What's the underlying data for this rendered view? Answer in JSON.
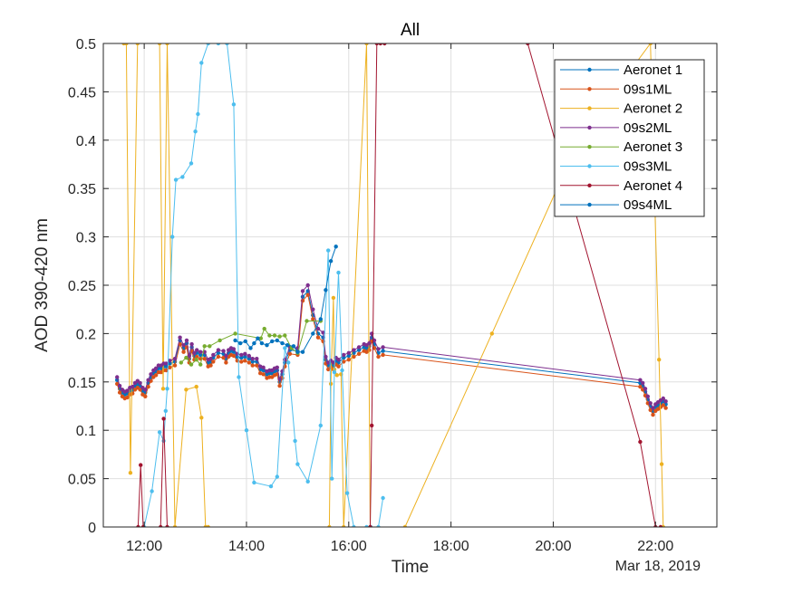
{
  "chart_data": {
    "type": "line",
    "title": "All",
    "xlabel": "Time",
    "ylabel": "AOD 390-420 nm",
    "date_label": "Mar 18, 2019",
    "x_unit": "hours",
    "xlim": [
      11.2,
      23.2
    ],
    "ylim": [
      0,
      0.5
    ],
    "x_ticks": [
      12,
      14,
      16,
      18,
      20,
      22
    ],
    "x_tick_labels": [
      "12:00",
      "14:00",
      "16:00",
      "18:00",
      "20:00",
      "22:00"
    ],
    "y_ticks": [
      0,
      0.05,
      0.1,
      0.15,
      0.2,
      0.25,
      0.3,
      0.35,
      0.4,
      0.45,
      0.5
    ],
    "y_tick_labels": [
      "0",
      "0.05",
      "0.1",
      "0.15",
      "0.2",
      "0.25",
      "0.3",
      "0.35",
      "0.4",
      "0.45",
      "0.5"
    ],
    "grid": true,
    "legend_position": "top-right",
    "series": [
      {
        "name": "Aeronet 1",
        "color": "#0072BD",
        "x": [
          11.47,
          11.52,
          11.57,
          11.62,
          11.67,
          11.72,
          11.77,
          11.82,
          11.87,
          11.92,
          11.97,
          12.02,
          12.08,
          12.13,
          12.18,
          12.23,
          12.28,
          12.33,
          12.38,
          12.43,
          12.5,
          12.6,
          12.7,
          12.77,
          12.83,
          12.88,
          12.93,
          12.98,
          13.03,
          13.1,
          13.18,
          13.25,
          13.3,
          13.35,
          13.45,
          13.55,
          13.6,
          13.65,
          13.7,
          13.75,
          13.82,
          13.9,
          13.97,
          14.05,
          14.12,
          14.2,
          14.27,
          14.33,
          14.4,
          14.45,
          14.5,
          14.55,
          14.6,
          14.65,
          14.7,
          14.75,
          14.85,
          15.0,
          15.1,
          15.2,
          15.3,
          15.4,
          15.5,
          15.55,
          15.6,
          15.65,
          15.7,
          15.75,
          15.8,
          15.9,
          16.0,
          16.1,
          16.2,
          16.3,
          16.35,
          16.4,
          16.45,
          16.5,
          16.58,
          16.67,
          21.7,
          21.75,
          21.8,
          21.85,
          21.9,
          21.95,
          22.0,
          22.05,
          22.1,
          22.15,
          22.2
        ],
        "y": [
          0.152,
          0.143,
          0.139,
          0.137,
          0.138,
          0.141,
          0.142,
          0.146,
          0.148,
          0.146,
          0.141,
          0.139,
          0.149,
          0.155,
          0.159,
          0.161,
          0.164,
          0.164,
          0.166,
          0.166,
          0.169,
          0.171,
          0.193,
          0.185,
          0.19,
          0.174,
          0.186,
          0.177,
          0.18,
          0.178,
          0.178,
          0.17,
          0.171,
          0.175,
          0.18,
          0.179,
          0.174,
          0.18,
          0.182,
          0.181,
          0.176,
          0.175,
          0.176,
          0.174,
          0.171,
          0.171,
          0.163,
          0.162,
          0.158,
          0.159,
          0.159,
          0.161,
          0.162,
          0.15,
          0.158,
          0.17,
          0.183,
          0.182,
          0.238,
          0.244,
          0.219,
          0.2,
          0.196,
          0.173,
          0.167,
          0.169,
          0.167,
          0.172,
          0.17,
          0.175,
          0.177,
          0.18,
          0.183,
          0.186,
          0.185,
          0.187,
          0.196,
          0.189,
          0.18,
          0.182,
          0.149,
          0.146,
          0.14,
          0.132,
          0.125,
          0.12,
          0.124,
          0.126,
          0.128,
          0.13,
          0.127
        ],
        "point_size": 2.2
      },
      {
        "name": "09s1ML",
        "color": "#D95319",
        "x": [
          11.47,
          11.52,
          11.57,
          11.62,
          11.67,
          11.72,
          11.77,
          11.82,
          11.87,
          11.92,
          11.97,
          12.02,
          12.08,
          12.13,
          12.18,
          12.23,
          12.28,
          12.33,
          12.38,
          12.43,
          12.5,
          12.6,
          12.7,
          12.77,
          12.83,
          12.88,
          12.93,
          12.98,
          13.03,
          13.1,
          13.18,
          13.25,
          13.3,
          13.35,
          13.45,
          13.55,
          13.6,
          13.65,
          13.7,
          13.75,
          13.82,
          13.9,
          13.97,
          14.05,
          14.12,
          14.2,
          14.27,
          14.33,
          14.4,
          14.45,
          14.5,
          14.55,
          14.6,
          14.65,
          14.7,
          14.75,
          14.85,
          15.0,
          15.1,
          15.2,
          15.3,
          15.4,
          15.5,
          15.55,
          15.6,
          15.65,
          15.7,
          15.75,
          15.8,
          15.9,
          16.0,
          16.1,
          16.2,
          16.3,
          16.35,
          16.4,
          16.45,
          16.5,
          16.58,
          16.67,
          21.7,
          21.75,
          21.8,
          21.85,
          21.9,
          21.95,
          22.0,
          22.05,
          22.1,
          22.15,
          22.2
        ],
        "y": [
          0.148,
          0.139,
          0.135,
          0.133,
          0.134,
          0.137,
          0.138,
          0.142,
          0.144,
          0.142,
          0.137,
          0.135,
          0.145,
          0.151,
          0.155,
          0.157,
          0.16,
          0.16,
          0.162,
          0.162,
          0.165,
          0.167,
          0.189,
          0.181,
          0.186,
          0.17,
          0.182,
          0.173,
          0.176,
          0.174,
          0.174,
          0.166,
          0.167,
          0.171,
          0.176,
          0.175,
          0.17,
          0.176,
          0.178,
          0.177,
          0.172,
          0.171,
          0.172,
          0.17,
          0.167,
          0.167,
          0.159,
          0.158,
          0.154,
          0.155,
          0.155,
          0.157,
          0.158,
          0.146,
          0.154,
          0.166,
          0.179,
          0.178,
          0.234,
          0.24,
          0.215,
          0.196,
          0.192,
          0.169,
          0.163,
          0.165,
          0.163,
          0.168,
          0.166,
          0.171,
          0.173,
          0.176,
          0.179,
          0.182,
          0.181,
          0.183,
          0.192,
          0.185,
          0.176,
          0.178,
          0.145,
          0.142,
          0.136,
          0.128,
          0.121,
          0.116,
          0.12,
          0.122,
          0.124,
          0.126,
          0.123
        ],
        "point_size": 2.2
      },
      {
        "name": "Aeronet 2",
        "color": "#EDB120",
        "x": [
          11.6,
          11.65,
          11.73,
          11.87,
          12.3,
          12.37,
          12.45,
          12.6,
          12.82,
          13.02,
          13.12,
          13.2,
          13.25,
          15.62,
          15.65,
          15.7,
          15.72,
          15.77,
          15.85,
          15.9,
          16.35,
          16.42,
          17.1,
          18.8,
          20.5,
          21.9,
          22.07,
          22.12,
          22.15
        ],
        "y": [
          0.5,
          0.5,
          0.056,
          0.5,
          0.5,
          0.143,
          0.5,
          0.0,
          0.142,
          0.145,
          0.113,
          0.0,
          0.0,
          0.0,
          0.148,
          0.237,
          0.163,
          0.157,
          0.158,
          0.0,
          0.5,
          0.0,
          0.0,
          0.2,
          0.4,
          0.5,
          0.173,
          0.065,
          0.0
        ],
        "point_size": 2.2
      },
      {
        "name": "09s2ML",
        "color": "#7E2F8E",
        "x": [
          11.47,
          11.52,
          11.57,
          11.62,
          11.67,
          11.72,
          11.77,
          11.82,
          11.87,
          11.92,
          11.97,
          12.02,
          12.08,
          12.13,
          12.18,
          12.23,
          12.28,
          12.33,
          12.38,
          12.43,
          12.5,
          12.6,
          12.7,
          12.77,
          12.83,
          12.88,
          12.93,
          12.98,
          13.03,
          13.1,
          13.18,
          13.25,
          13.3,
          13.35,
          13.45,
          13.55,
          13.6,
          13.65,
          13.7,
          13.75,
          13.82,
          13.9,
          13.97,
          14.05,
          14.12,
          14.2,
          14.27,
          14.33,
          14.4,
          14.45,
          14.5,
          14.55,
          14.6,
          14.65,
          14.7,
          14.75,
          14.85,
          15.0,
          15.1,
          15.2,
          15.3,
          15.4,
          15.5,
          15.55,
          15.6,
          15.65,
          15.7,
          15.75,
          15.8,
          15.9,
          16.0,
          16.1,
          16.2,
          16.3,
          16.35,
          16.4,
          16.45,
          16.5,
          16.58,
          16.67,
          21.7,
          21.75,
          21.8,
          21.85,
          21.9,
          21.95,
          22.0,
          22.05,
          22.1,
          22.15,
          22.2
        ],
        "y": [
          0.155,
          0.146,
          0.142,
          0.14,
          0.141,
          0.144,
          0.145,
          0.149,
          0.151,
          0.149,
          0.144,
          0.142,
          0.152,
          0.158,
          0.162,
          0.164,
          0.167,
          0.167,
          0.169,
          0.169,
          0.172,
          0.174,
          0.196,
          0.188,
          0.193,
          0.177,
          0.189,
          0.18,
          0.183,
          0.181,
          0.181,
          0.173,
          0.174,
          0.178,
          0.183,
          0.182,
          0.177,
          0.183,
          0.185,
          0.184,
          0.179,
          0.178,
          0.179,
          0.177,
          0.174,
          0.174,
          0.166,
          0.165,
          0.161,
          0.162,
          0.162,
          0.164,
          0.165,
          0.153,
          0.161,
          0.173,
          0.186,
          0.185,
          0.244,
          0.25,
          0.225,
          0.205,
          0.201,
          0.176,
          0.17,
          0.172,
          0.17,
          0.175,
          0.173,
          0.178,
          0.18,
          0.183,
          0.186,
          0.189,
          0.188,
          0.19,
          0.2,
          0.193,
          0.184,
          0.186,
          0.152,
          0.149,
          0.143,
          0.135,
          0.128,
          0.123,
          0.127,
          0.129,
          0.131,
          0.133,
          0.13
        ],
        "point_size": 2.2
      },
      {
        "name": "Aeronet 3",
        "color": "#77AC30",
        "x": [
          12.72,
          12.82,
          12.92,
          13.02,
          13.1,
          13.18,
          13.28,
          13.48,
          13.78,
          14.28,
          14.35,
          14.45,
          14.55,
          14.65,
          14.75,
          14.88,
          15.0,
          15.18,
          15.45
        ],
        "y": [
          0.17,
          0.175,
          0.168,
          0.173,
          0.168,
          0.187,
          0.187,
          0.193,
          0.2,
          0.195,
          0.205,
          0.198,
          0.198,
          0.197,
          0.198,
          0.185,
          0.18,
          0.213,
          0.213
        ],
        "point_size": 2.2
      },
      {
        "name": "09s3ML",
        "color": "#4DBEEE",
        "x": [
          12.0,
          12.15,
          12.3,
          12.38,
          12.42,
          12.45,
          12.55,
          12.62,
          12.75,
          12.92,
          13.0,
          13.05,
          13.12,
          13.25,
          13.45,
          13.62,
          13.75,
          13.85,
          14.0,
          14.15,
          14.48,
          14.6,
          14.75,
          14.82,
          14.95,
          15.0,
          15.2,
          15.45,
          15.6,
          15.67,
          15.72,
          15.8,
          15.87,
          15.97,
          16.1,
          16.35,
          16.43,
          16.58,
          16.67
        ],
        "y": [
          0.0,
          0.037,
          0.098,
          0.089,
          0.12,
          0.143,
          0.3,
          0.359,
          0.362,
          0.376,
          0.409,
          0.427,
          0.48,
          0.5,
          0.5,
          0.5,
          0.437,
          0.155,
          0.1,
          0.046,
          0.042,
          0.052,
          0.185,
          0.17,
          0.089,
          0.065,
          0.047,
          0.105,
          0.286,
          0.05,
          0.16,
          0.263,
          0.162,
          0.035,
          0.0,
          0.0,
          0.0,
          0.0,
          0.03
        ],
        "point_size": 2.2
      },
      {
        "name": "Aeronet 4",
        "color": "#A2142F",
        "x": [
          11.88,
          11.93,
          11.98,
          12.32,
          12.38,
          12.45,
          16.42,
          16.45,
          16.55,
          16.62,
          16.7,
          19.5,
          21.7,
          22.0,
          22.1
        ],
        "y": [
          0.0,
          0.064,
          0.0,
          0.0,
          0.112,
          0.0,
          0.0,
          0.105,
          0.5,
          0.5,
          0.5,
          0.5,
          0.088,
          0.0,
          0.0
        ],
        "point_size": 2.2
      },
      {
        "name": "09s4ML",
        "color": "#0072BD",
        "x": [
          13.78,
          13.88,
          13.98,
          14.08,
          14.15,
          14.22,
          14.3,
          14.4,
          14.5,
          14.6,
          14.7,
          14.8,
          14.92,
          15.0,
          15.1,
          15.3,
          15.45,
          15.55,
          15.65,
          15.75
        ],
        "y": [
          0.193,
          0.19,
          0.192,
          0.185,
          0.19,
          0.195,
          0.19,
          0.188,
          0.192,
          0.193,
          0.19,
          0.188,
          0.187,
          0.181,
          0.181,
          0.2,
          0.215,
          0.245,
          0.275,
          0.29
        ],
        "point_size": 2.2
      }
    ]
  }
}
